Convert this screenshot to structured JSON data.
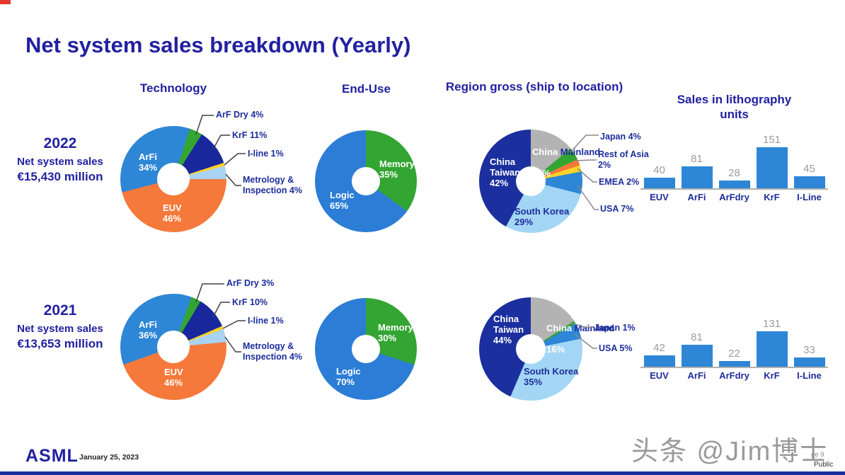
{
  "title": "Net system sales breakdown (Yearly)",
  "columns": {
    "technology": "Technology",
    "end_use": "End-Use",
    "region": "Region gross (ship to location)",
    "litho_units": "Sales in lithography\nunits"
  },
  "rows": [
    {
      "year": "2022",
      "subtitle": "Net system sales",
      "amount": "€15,430 million",
      "tech_labels": {
        "arfi": "ArFi\n34%",
        "euv": "EUV\n46%",
        "arf_dry": "ArF Dry 4%",
        "krf": "KrF 11%",
        "iline": "I-line 1%",
        "metrology": "Metrology &\nInspection 4%"
      },
      "enduse_labels": {
        "memory": "Memory\n35%",
        "logic": "Logic\n65%"
      },
      "region_labels": {
        "china_taiwan": "China\nTaiwan\n42%",
        "china_word": "China",
        "mainland_word": "Mainland",
        "mainland_pct": "14%",
        "south_korea": "South Korea\n29%",
        "japan": "Japan 4%",
        "rest_of_asia": "Rest of Asia\n2%",
        "emea": "EMEA 2%",
        "usa": "USA 7%"
      }
    },
    {
      "year": "2021",
      "subtitle": "Net system sales",
      "amount": "€13,653 million",
      "tech_labels": {
        "arfi": "ArFi\n36%",
        "euv": "EUV\n46%",
        "arf_dry": "ArF Dry 3%",
        "krf": "KrF 10%",
        "iline": "I-line 1%",
        "metrology": "Metrology &\nInspection 4%"
      },
      "enduse_labels": {
        "memory": "Memory\n30%",
        "logic": "Logic\n70%"
      },
      "region_labels": {
        "china_taiwan": "China\nTaiwan\n44%",
        "china_word": "China",
        "mainland_word": "Mainland",
        "mainland_pct": "16%",
        "south_korea": "South Korea\n35%",
        "japan": "Japan 1%",
        "usa": "USA 5%"
      }
    }
  ],
  "footer": {
    "logo": "ASML",
    "date": "January 25, 2023",
    "page": "ge 9",
    "classification": "Public",
    "watermark": "头条 @Jim博士"
  },
  "colors": {
    "navy_text": "#2121a0",
    "arfi_blue": "#2e86d6",
    "euv_orange": "#f5793b",
    "green": "#33a532",
    "krf_navy": "#18289c",
    "yellow": "#fdd128",
    "light_blue": "#a9d3f2",
    "gray_slice": "#b3b3b3",
    "south_korea_blue": "#a2d6f4",
    "bar_blue": "#2e86d6"
  },
  "chart_data": [
    {
      "id": "technology-2022",
      "type": "pie",
      "title": "Technology",
      "year": "2022",
      "start_angle": 18,
      "slices": [
        {
          "label": "ArF Dry",
          "pct": 4,
          "color": "#33a532"
        },
        {
          "label": "KrF",
          "pct": 11,
          "color": "#18289c"
        },
        {
          "label": "I-line",
          "pct": 1,
          "color": "#fdd128"
        },
        {
          "label": "Metrology & Inspection",
          "pct": 4,
          "color": "#a9d3f2"
        },
        {
          "label": "EUV",
          "pct": 46,
          "color": "#f5793b"
        },
        {
          "label": "ArFi",
          "pct": 34,
          "color": "#2e86d6"
        }
      ]
    },
    {
      "id": "end-use-2022",
      "type": "pie",
      "title": "End-Use",
      "year": "2022",
      "start_angle": 0,
      "slices": [
        {
          "label": "Memory",
          "pct": 35,
          "color": "#33a532"
        },
        {
          "label": "Logic",
          "pct": 65,
          "color": "#2b7dd6"
        }
      ]
    },
    {
      "id": "region-2022",
      "type": "pie",
      "title": "Region gross (ship to location)",
      "year": "2022",
      "start_angle": 0,
      "slices": [
        {
          "label": "China Mainland",
          "pct": 14,
          "color": "#b3b3b3"
        },
        {
          "label": "Japan",
          "pct": 4,
          "color": "#33a532"
        },
        {
          "label": "Rest of Asia",
          "pct": 2,
          "color": "#f5793b"
        },
        {
          "label": "EMEA",
          "pct": 2,
          "color": "#fdd128"
        },
        {
          "label": "USA",
          "pct": 7,
          "color": "#2e86d6"
        },
        {
          "label": "South Korea",
          "pct": 29,
          "color": "#a2d6f4"
        },
        {
          "label": "China Taiwan",
          "pct": 42,
          "color": "#1b2f9e"
        }
      ]
    },
    {
      "id": "litho-units-2022",
      "type": "bar",
      "title": "Sales in lithography units",
      "year": "2022",
      "categories": [
        "EUV",
        "ArFi",
        "ArFdry",
        "KrF",
        "I-Line"
      ],
      "values": [
        40,
        81,
        28,
        151,
        45
      ],
      "ylim": [
        0,
        160
      ],
      "value_labels_shown": true
    },
    {
      "id": "technology-2021",
      "type": "pie",
      "title": "Technology",
      "year": "2021",
      "start_angle": 20,
      "slices": [
        {
          "label": "ArF Dry",
          "pct": 3,
          "color": "#33a532"
        },
        {
          "label": "KrF",
          "pct": 10,
          "color": "#18289c"
        },
        {
          "label": "I-line",
          "pct": 1,
          "color": "#fdd128"
        },
        {
          "label": "Metrology & Inspection",
          "pct": 4,
          "color": "#a9d3f2"
        },
        {
          "label": "EUV",
          "pct": 46,
          "color": "#f5793b"
        },
        {
          "label": "ArFi",
          "pct": 36,
          "color": "#2e86d6"
        }
      ]
    },
    {
      "id": "end-use-2021",
      "type": "pie",
      "title": "End-Use",
      "year": "2021",
      "start_angle": 0,
      "slices": [
        {
          "label": "Memory",
          "pct": 30,
          "color": "#33a532"
        },
        {
          "label": "Logic",
          "pct": 70,
          "color": "#2b7dd6"
        }
      ]
    },
    {
      "id": "region-2021",
      "type": "pie",
      "title": "Region gross (ship to location)",
      "year": "2021",
      "start_angle": 0,
      "slices": [
        {
          "label": "China Mainland",
          "pct": 16,
          "color": "#b3b3b3"
        },
        {
          "label": "Japan",
          "pct": 1,
          "color": "#33a532"
        },
        {
          "label": "USA",
          "pct": 5,
          "color": "#2e86d6"
        },
        {
          "label": "South Korea",
          "pct": 35,
          "color": "#a2d6f4"
        },
        {
          "label": "China Taiwan",
          "pct": 44,
          "color": "#1b2f9e"
        }
      ]
    },
    {
      "id": "litho-units-2021",
      "type": "bar",
      "title": "Sales in lithography units",
      "year": "2021",
      "categories": [
        "EUV",
        "ArFi",
        "ArFdry",
        "KrF",
        "I-Line"
      ],
      "values": [
        42,
        81,
        22,
        131,
        33
      ],
      "ylim": [
        0,
        160
      ],
      "value_labels_shown": true
    }
  ]
}
